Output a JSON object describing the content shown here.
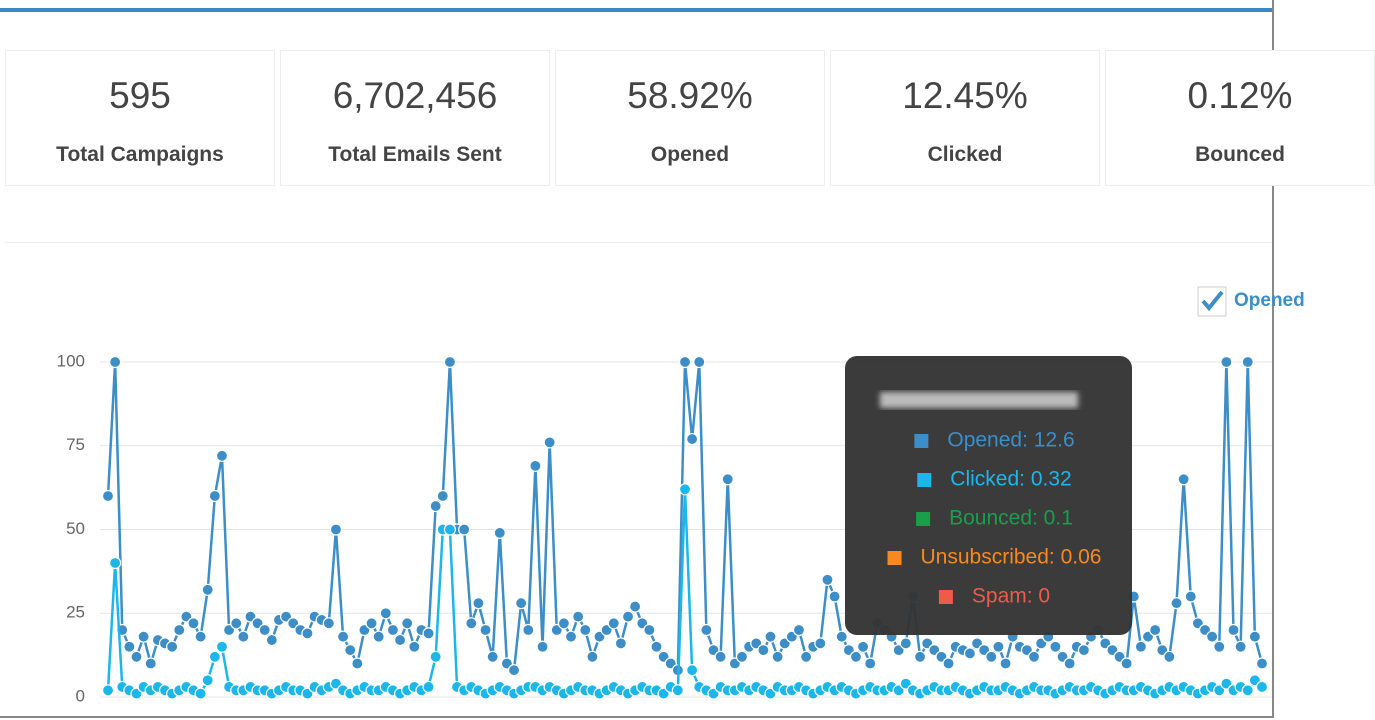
{
  "stats": [
    {
      "value": "595",
      "label": "Total Campaigns"
    },
    {
      "value": "6,702,456",
      "label": "Total Emails Sent"
    },
    {
      "value": "58.92%",
      "label": "Opened"
    },
    {
      "value": "12.45%",
      "label": "Clicked"
    },
    {
      "value": "0.12%",
      "label": "Bounced"
    }
  ],
  "chart_data": {
    "type": "line",
    "ylim": [
      0,
      100
    ],
    "yticks": [
      0,
      25,
      50,
      75,
      100
    ],
    "grid": true,
    "legend": "top-right",
    "series": [
      {
        "name": "Opened",
        "color": "#3d8ec7",
        "values": [
          60,
          100,
          20,
          15,
          12,
          18,
          10,
          17,
          16,
          15,
          20,
          24,
          22,
          18,
          32,
          60,
          72,
          20,
          22,
          18,
          24,
          22,
          20,
          17,
          23,
          24,
          22,
          20,
          19,
          24,
          23,
          22,
          50,
          18,
          14,
          10,
          20,
          22,
          18,
          25,
          20,
          17,
          22,
          15,
          20,
          19,
          57,
          60,
          100,
          50,
          50,
          22,
          28,
          20,
          12,
          49,
          10,
          8,
          28,
          20,
          69,
          15,
          76,
          20,
          22,
          18,
          24,
          20,
          12,
          18,
          20,
          22,
          16,
          24,
          27,
          22,
          20,
          15,
          12,
          10,
          8,
          100,
          77,
          100,
          20,
          14,
          12,
          65,
          10,
          12,
          15,
          16,
          14,
          18,
          12,
          16,
          18,
          20,
          12,
          15,
          16,
          35,
          30,
          18,
          14,
          12,
          15,
          10,
          22,
          20,
          18,
          14,
          16,
          30,
          12,
          16,
          14,
          12,
          10,
          15,
          14,
          13,
          16,
          14,
          12,
          15,
          10,
          18,
          15,
          14,
          12,
          16,
          18,
          15,
          12,
          10,
          15,
          14,
          18,
          20,
          16,
          14,
          12,
          10,
          30,
          15,
          18,
          20,
          14,
          12,
          28,
          65,
          30,
          22,
          20,
          18,
          15,
          100,
          20,
          15,
          100,
          18,
          10
        ]
      },
      {
        "name": "Clicked",
        "color": "#1cb7ea",
        "values": [
          2,
          40,
          3,
          2,
          1,
          3,
          2,
          3,
          2,
          1,
          2,
          3,
          2,
          1,
          5,
          12,
          15,
          3,
          2,
          2,
          3,
          2,
          2,
          1,
          2,
          3,
          2,
          2,
          1,
          3,
          2,
          3,
          4,
          2,
          1,
          2,
          3,
          2,
          2,
          3,
          2,
          1,
          2,
          3,
          2,
          3,
          12,
          50,
          50,
          3,
          2,
          3,
          2,
          1,
          2,
          3,
          2,
          1,
          2,
          3,
          3,
          2,
          3,
          2,
          1,
          2,
          3,
          2,
          2,
          1,
          2,
          3,
          2,
          1,
          2,
          3,
          2,
          2,
          1,
          3,
          2,
          62,
          8,
          3,
          2,
          1,
          3,
          2,
          2,
          3,
          2,
          3,
          2,
          1,
          3,
          2,
          2,
          3,
          2,
          1,
          2,
          3,
          2,
          3,
          2,
          1,
          2,
          3,
          2,
          2,
          3,
          2,
          4,
          2,
          1,
          2,
          3,
          2,
          2,
          3,
          2,
          1,
          2,
          3,
          2,
          2,
          3,
          2,
          1,
          2,
          3,
          2,
          2,
          1,
          2,
          3,
          2,
          2,
          3,
          2,
          1,
          2,
          3,
          2,
          2,
          3,
          2,
          1,
          2,
          3,
          2,
          3,
          2,
          1,
          2,
          3,
          2,
          4,
          2,
          3,
          2,
          5,
          3
        ]
      }
    ],
    "tooltip": {
      "rows": [
        {
          "text": "Opened: 12.6",
          "color": "#3d8ec7"
        },
        {
          "text": "Clicked: 0.32",
          "color": "#1cb7ea"
        },
        {
          "text": "Bounced: 0.1",
          "color": "#1a9e4a"
        },
        {
          "text": "Unsubscribed: 0.06",
          "color": "#f7891e"
        },
        {
          "text": "Spam: 0",
          "color": "#f05a4a"
        }
      ]
    }
  }
}
